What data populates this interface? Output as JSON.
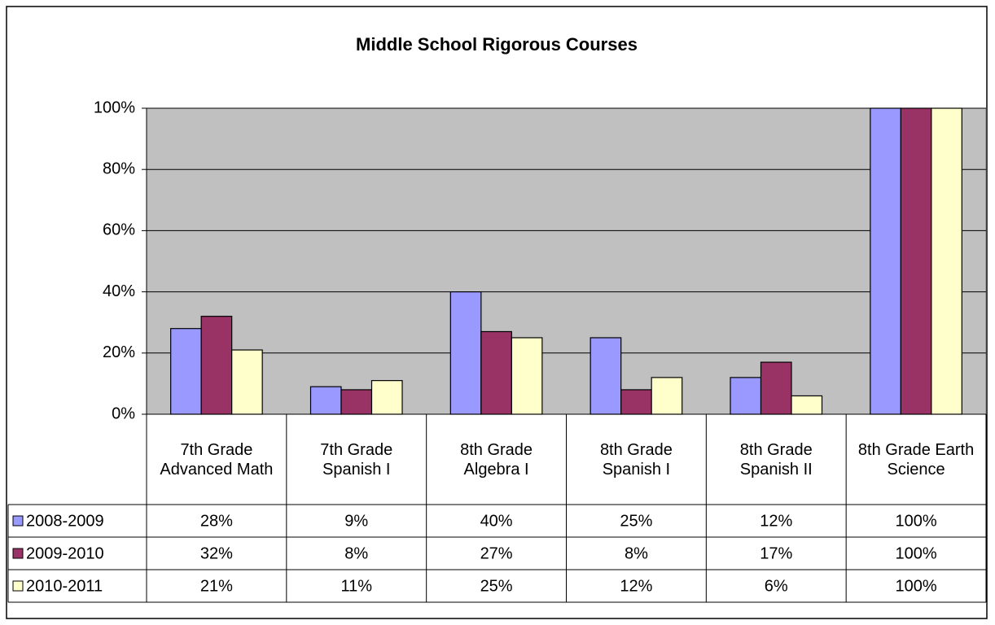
{
  "chart_data": {
    "type": "bar",
    "title": "Middle School Rigorous Courses",
    "categories": [
      "7th Grade Advanced Math",
      "7th Grade Spanish I",
      "8th Grade Algebra I",
      "8th Grade Spanish I",
      "8th Grade Spanish II",
      "8th Grade Earth Science"
    ],
    "series": [
      {
        "name": "2008-2009",
        "color": "#9999ff",
        "values": [
          28,
          9,
          40,
          25,
          12,
          100
        ],
        "value_labels": [
          "28%",
          "9%",
          "40%",
          "25%",
          "12%",
          "100%"
        ]
      },
      {
        "name": "2009-2010",
        "color": "#993366",
        "values": [
          32,
          8,
          27,
          8,
          17,
          100
        ],
        "value_labels": [
          "32%",
          "8%",
          "27%",
          "8%",
          "17%",
          "100%"
        ]
      },
      {
        "name": "2010-2011",
        "color": "#ffffcc",
        "values": [
          21,
          11,
          25,
          12,
          6,
          100
        ],
        "value_labels": [
          "21%",
          "11%",
          "25%",
          "12%",
          "6%",
          "100%"
        ]
      }
    ],
    "ylim": [
      0,
      100
    ],
    "yticks": [
      {
        "value": 0,
        "label": "0%"
      },
      {
        "value": 20,
        "label": "20%"
      },
      {
        "value": 40,
        "label": "40%"
      },
      {
        "value": 60,
        "label": "60%"
      },
      {
        "value": 80,
        "label": "80%"
      },
      {
        "value": 100,
        "label": "100%"
      }
    ],
    "grid": true,
    "plot_background": "#c0c0c0"
  }
}
